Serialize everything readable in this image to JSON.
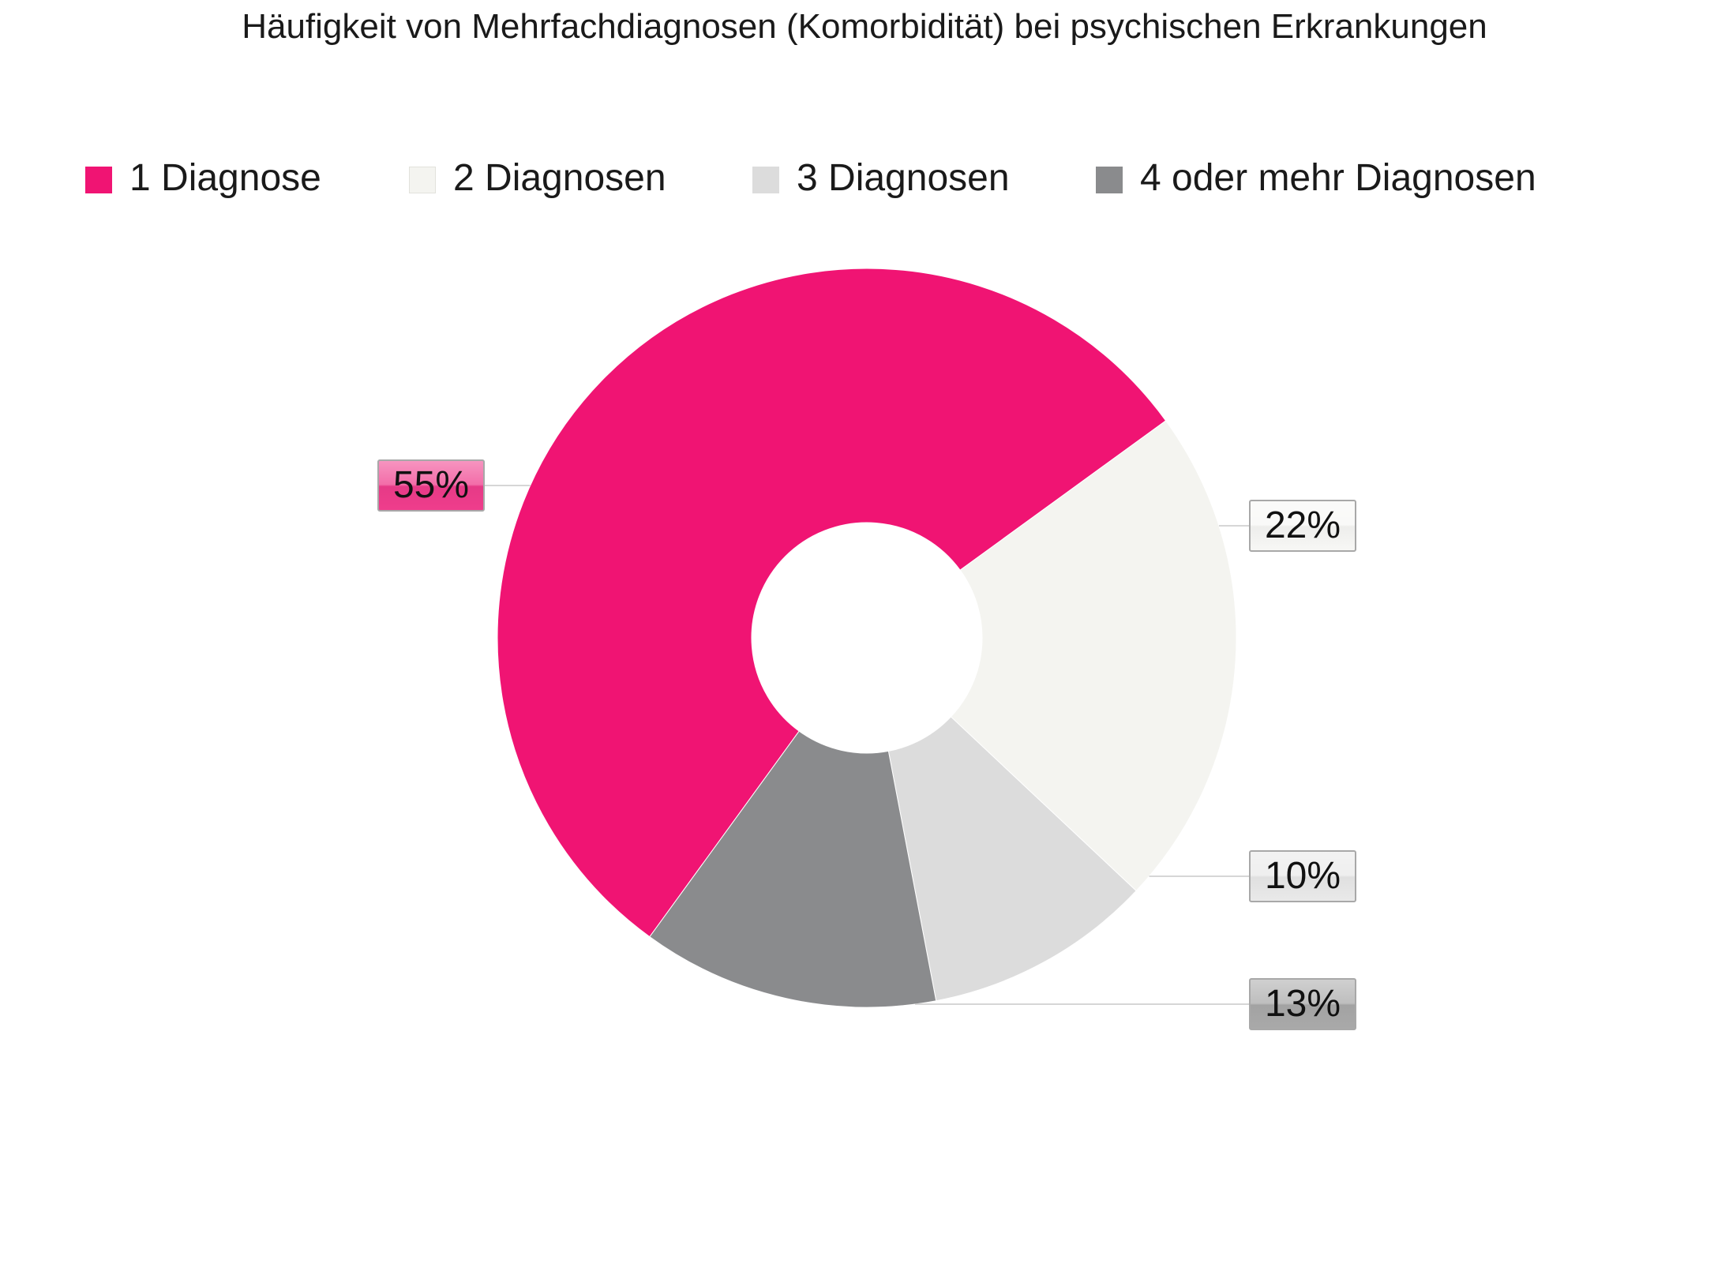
{
  "chart_data": {
    "type": "pie",
    "donut": true,
    "title": "Häufigkeit von Mehrfachdiagnosen (Komorbidität) bei psychischen Erkrankungen",
    "legend_position": "top",
    "categories": [
      "1 Diagnose",
      "2 Diagnosen",
      "3 Diagnosen",
      "4 oder mehr Diagnosen"
    ],
    "values": [
      55,
      22,
      10,
      13
    ],
    "labels": [
      "55%",
      "22%",
      "10%",
      "13%"
    ],
    "colors": [
      "#f01473",
      "#f4f4f0",
      "#dcdcdc",
      "#8a8b8d"
    ],
    "label_box_colors": [
      "#ef3d8c",
      "#f7f7f5",
      "#e9e9e9",
      "#a9a9a9"
    ]
  }
}
